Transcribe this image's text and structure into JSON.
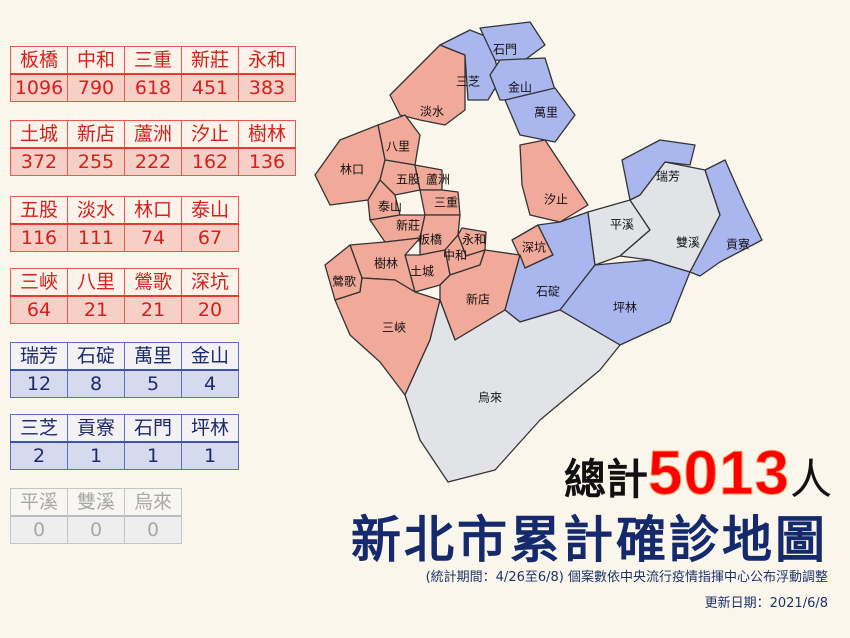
{
  "colors": {
    "red_fill": "#f1a999",
    "blue_fill": "#aab6ee",
    "gray_fill": "#e1e3e6",
    "red_text": "#d41f1a",
    "blue_text": "#1d2a6c",
    "title_navy": "#152a6c",
    "total_red": "#ff0000"
  },
  "tables": [
    {
      "tone": "red",
      "names": [
        "板橋",
        "中和",
        "三重",
        "新莊",
        "永和"
      ],
      "values": [
        "1096",
        "790",
        "618",
        "451",
        "383"
      ]
    },
    {
      "tone": "red",
      "names": [
        "土城",
        "新店",
        "蘆洲",
        "汐止",
        "樹林"
      ],
      "values": [
        "372",
        "255",
        "222",
        "162",
        "136"
      ]
    },
    {
      "tone": "red",
      "names": [
        "五股",
        "淡水",
        "林口",
        "泰山"
      ],
      "values": [
        "116",
        "111",
        "74",
        "67"
      ]
    },
    {
      "tone": "red",
      "names": [
        "三峽",
        "八里",
        "鶯歌",
        "深坑"
      ],
      "values": [
        "64",
        "21",
        "21",
        "20"
      ]
    },
    {
      "tone": "blue",
      "names": [
        "瑞芳",
        "石碇",
        "萬里",
        "金山"
      ],
      "values": [
        "12",
        "8",
        "5",
        "4"
      ]
    },
    {
      "tone": "blue",
      "names": [
        "三芝",
        "貢寮",
        "石門",
        "坪林"
      ],
      "values": [
        "2",
        "1",
        "1",
        "1"
      ]
    },
    {
      "tone": "gray",
      "names": [
        "平溪",
        "雙溪",
        "烏來"
      ],
      "values": [
        "0",
        "0",
        "0"
      ]
    }
  ],
  "map": {
    "districts": [
      {
        "name": "淡水",
        "tone": "red"
      },
      {
        "name": "三芝",
        "tone": "blue"
      },
      {
        "name": "石門",
        "tone": "blue"
      },
      {
        "name": "金山",
        "tone": "blue"
      },
      {
        "name": "萬里",
        "tone": "blue"
      },
      {
        "name": "八里",
        "tone": "red"
      },
      {
        "name": "林口",
        "tone": "red"
      },
      {
        "name": "五股",
        "tone": "red"
      },
      {
        "name": "蘆洲",
        "tone": "red"
      },
      {
        "name": "泰山",
        "tone": "red"
      },
      {
        "name": "新莊",
        "tone": "red"
      },
      {
        "name": "三重",
        "tone": "red"
      },
      {
        "name": "板橋",
        "tone": "red"
      },
      {
        "name": "永和",
        "tone": "red"
      },
      {
        "name": "中和",
        "tone": "red"
      },
      {
        "name": "土城",
        "tone": "red"
      },
      {
        "name": "樹林",
        "tone": "red"
      },
      {
        "name": "鶯歌",
        "tone": "red"
      },
      {
        "name": "三峽",
        "tone": "red"
      },
      {
        "name": "新店",
        "tone": "red"
      },
      {
        "name": "汐止",
        "tone": "red"
      },
      {
        "name": "深坑",
        "tone": "red"
      },
      {
        "name": "石碇",
        "tone": "blue"
      },
      {
        "name": "坪林",
        "tone": "blue"
      },
      {
        "name": "平溪",
        "tone": "gray"
      },
      {
        "name": "雙溪",
        "tone": "gray"
      },
      {
        "name": "瑞芳",
        "tone": "blue"
      },
      {
        "name": "貢寮",
        "tone": "blue"
      },
      {
        "name": "烏來",
        "tone": "gray"
      }
    ]
  },
  "title": {
    "prefix": "總計",
    "total": "5013",
    "suffix": "人",
    "main": "新北市累計確診地圖",
    "note": "(統計期間：4/26至6/8) 個案數依中央流行疫情指揮中心公布浮動調整",
    "updated": "更新日期：2021/6/8"
  }
}
